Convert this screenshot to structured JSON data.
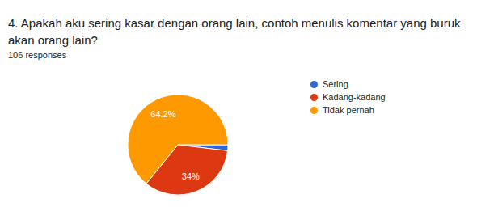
{
  "chart_data": {
    "type": "pie",
    "title": "4. Apakah aku sering kasar dengan orang lain, contoh menulis komentar yang buruk akan orang lain?",
    "subtitle": "106 responses",
    "categories": [
      "Sering",
      "Kadang-kadang",
      "Tidak pernah"
    ],
    "values": [
      1.9,
      34,
      64.2
    ],
    "colors": [
      "#3366cc",
      "#dc3912",
      "#ff9900"
    ],
    "data_labels": true,
    "value_labels": [
      null,
      "34%",
      "64.2%"
    ],
    "legend": "right"
  }
}
